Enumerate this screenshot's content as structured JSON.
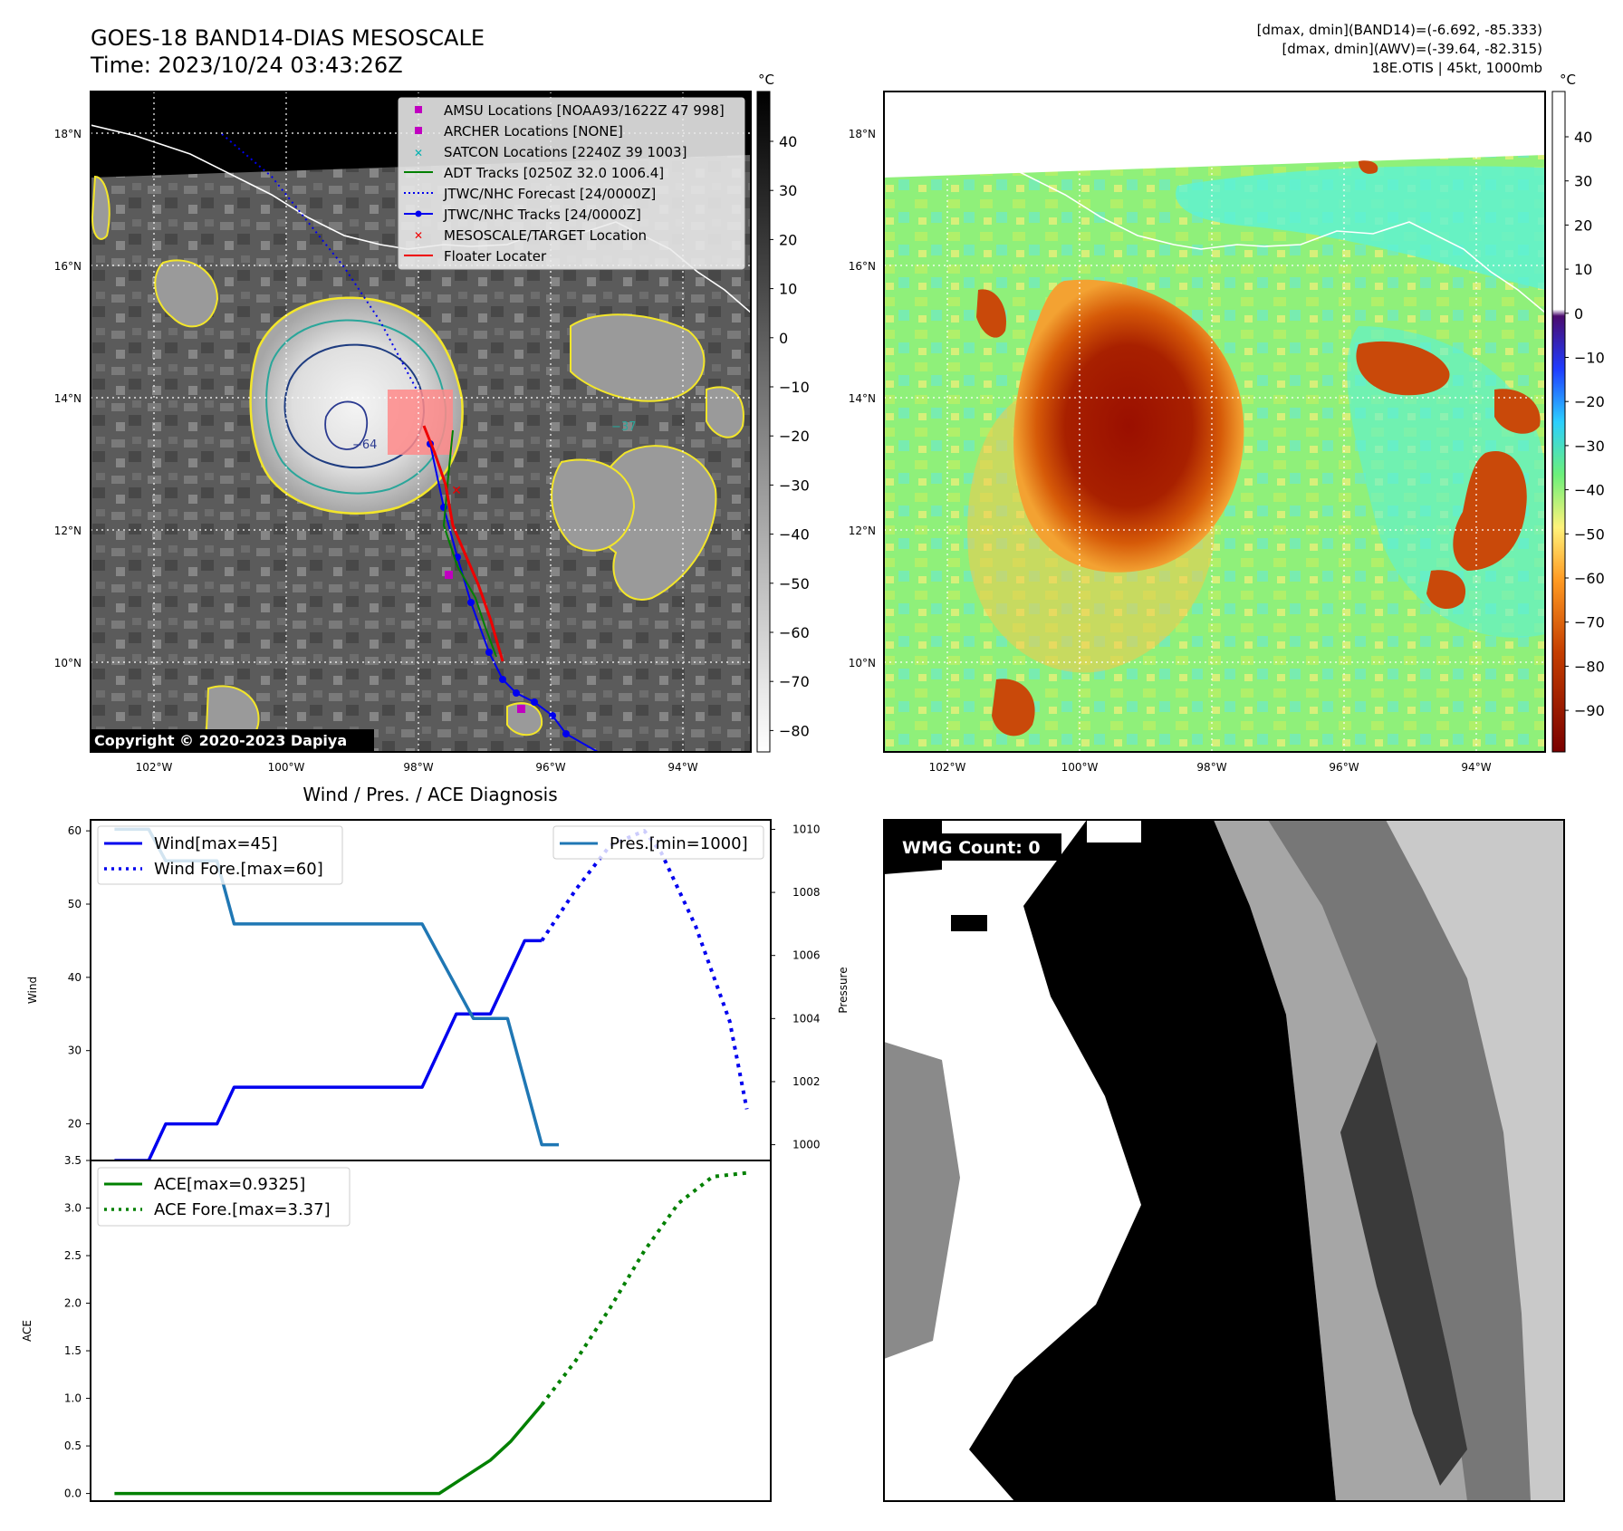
{
  "header": {
    "title": "GOES-18 BAND14-DIAS MESOSCALE",
    "time": "Time: 2023/10/24 03:43:26Z",
    "stats_band14": "[dmax, dmin](BAND14)=(-6.692, -85.333)",
    "stats_awv": "[dmax, dmin](AWV)=(-39.64, -82.315)",
    "storm": "18E.OTIS | 45kt, 1000mb"
  },
  "colors": {
    "wind": "#0000ee",
    "pressure": "#1f77b4",
    "ace": "#008000",
    "legend_amsu": "#c000c0",
    "legend_satcon": "#00b0b0",
    "legend_target": "#ee0000"
  },
  "map_panel": {
    "lat_labels": [
      "18°N",
      "16°N",
      "14°N",
      "12°N",
      "10°N"
    ],
    "lon_labels": [
      "102°W",
      "100°W",
      "98°W",
      "96°W",
      "94°W"
    ],
    "copyright": "Copyright © 2020-2023 Dapiya",
    "colorbar_unit": "°C",
    "colorbar_ticks": [
      "40",
      "30",
      "20",
      "10",
      "0",
      "−10",
      "−20",
      "−30",
      "−40",
      "−50",
      "−60",
      "−70",
      "−80"
    ],
    "contour_labels": [
      "−64",
      "−37"
    ],
    "legend": [
      {
        "label": "AMSU Locations [NOAA93/1622Z 47 998]",
        "icon": "square-marker"
      },
      {
        "label": "ARCHER Locations [NONE]",
        "icon": "square-marker"
      },
      {
        "label": "SATCON Locations [2240Z 39 1003]",
        "icon": "x-marker"
      },
      {
        "label": "ADT Tracks [0250Z 32.0 1006.4]",
        "icon": "solid-line"
      },
      {
        "label": "JTWC/NHC Forecast [24/0000Z]",
        "icon": "dotted-line"
      },
      {
        "label": "JTWC/NHC Tracks [24/0000Z]",
        "icon": "line-dot"
      },
      {
        "label": "MESOSCALE/TARGET Location",
        "icon": "x-marker"
      },
      {
        "label": "Floater Locater",
        "icon": "solid-line"
      }
    ]
  },
  "awv_panel": {
    "lat_labels": [
      "18°N",
      "16°N",
      "14°N",
      "12°N",
      "10°N"
    ],
    "lon_labels": [
      "102°W",
      "100°W",
      "98°W",
      "96°W",
      "94°W"
    ],
    "colorbar_unit": "°C",
    "colorbar_ticks": [
      "40",
      "30",
      "20",
      "10",
      "0",
      "−10",
      "−20",
      "−30",
      "−40",
      "−50",
      "−60",
      "−70",
      "−80",
      "−90"
    ]
  },
  "wmg_panel": {
    "label": "WMG Count: 0"
  },
  "chart_data": [
    {
      "type": "line",
      "title": "Wind / Pres. / ACE Diagnosis",
      "ylabel": "Wind",
      "ylabel_right": "Pressure",
      "ylim": [
        15,
        61.5
      ],
      "ylim_right": [
        999.5,
        1010.3
      ],
      "yticks": [
        20,
        30,
        40,
        50,
        60
      ],
      "yticks_right": [
        1000,
        1002,
        1004,
        1006,
        1008,
        1010
      ],
      "x": [
        0,
        1,
        2,
        3,
        4,
        5,
        6,
        7,
        8,
        9,
        10,
        11,
        12,
        13,
        14,
        15,
        16,
        17,
        18,
        19
      ],
      "series": [
        {
          "name": "Wind[max=45]",
          "axis": "left",
          "style": "solid",
          "points": [
            [
              0,
              15
            ],
            [
              1,
              15
            ],
            [
              1.5,
              20
            ],
            [
              3,
              20
            ],
            [
              3.5,
              25
            ],
            [
              9,
              25
            ],
            [
              10,
              35
            ],
            [
              11,
              35
            ],
            [
              12,
              45
            ],
            [
              12.5,
              45
            ]
          ]
        },
        {
          "name": "Wind Fore.[max=60]",
          "axis": "left",
          "style": "dotted",
          "points": [
            [
              12.5,
              45
            ],
            [
              13.5,
              52
            ],
            [
              14.5,
              58
            ],
            [
              15.5,
              60
            ],
            [
              16,
              57
            ],
            [
              17,
              47
            ],
            [
              18,
              34
            ],
            [
              18.5,
              22
            ]
          ]
        },
        {
          "name": "Pres.[min=1000]",
          "axis": "right",
          "style": "solid",
          "points": [
            [
              0,
              1010
            ],
            [
              1,
              1010
            ],
            [
              1.5,
              1009
            ],
            [
              3,
              1009
            ],
            [
              3.5,
              1007
            ],
            [
              9,
              1007
            ],
            [
              9.5,
              1006
            ],
            [
              10.5,
              1004
            ],
            [
              11.5,
              1004
            ],
            [
              12.5,
              1000
            ],
            [
              13,
              1000
            ]
          ]
        }
      ]
    },
    {
      "type": "line",
      "ylabel": "ACE",
      "ylim": [
        -0.08,
        3.5
      ],
      "yticks": [
        0.0,
        0.5,
        1.0,
        1.5,
        2.0,
        2.5,
        3.0,
        3.5
      ],
      "series": [
        {
          "name": "ACE[max=0.9325]",
          "style": "solid",
          "points": [
            [
              0,
              0
            ],
            [
              9.5,
              0
            ],
            [
              11,
              0.35
            ],
            [
              11.6,
              0.55
            ],
            [
              12.5,
              0.9325
            ]
          ]
        },
        {
          "name": "ACE Fore.[max=3.37]",
          "style": "dotted",
          "points": [
            [
              12.5,
              0.9325
            ],
            [
              13.5,
              1.4
            ],
            [
              14.5,
              1.95
            ],
            [
              15.5,
              2.55
            ],
            [
              16.5,
              3.05
            ],
            [
              17.5,
              3.33
            ],
            [
              18.5,
              3.37
            ]
          ]
        }
      ]
    }
  ]
}
